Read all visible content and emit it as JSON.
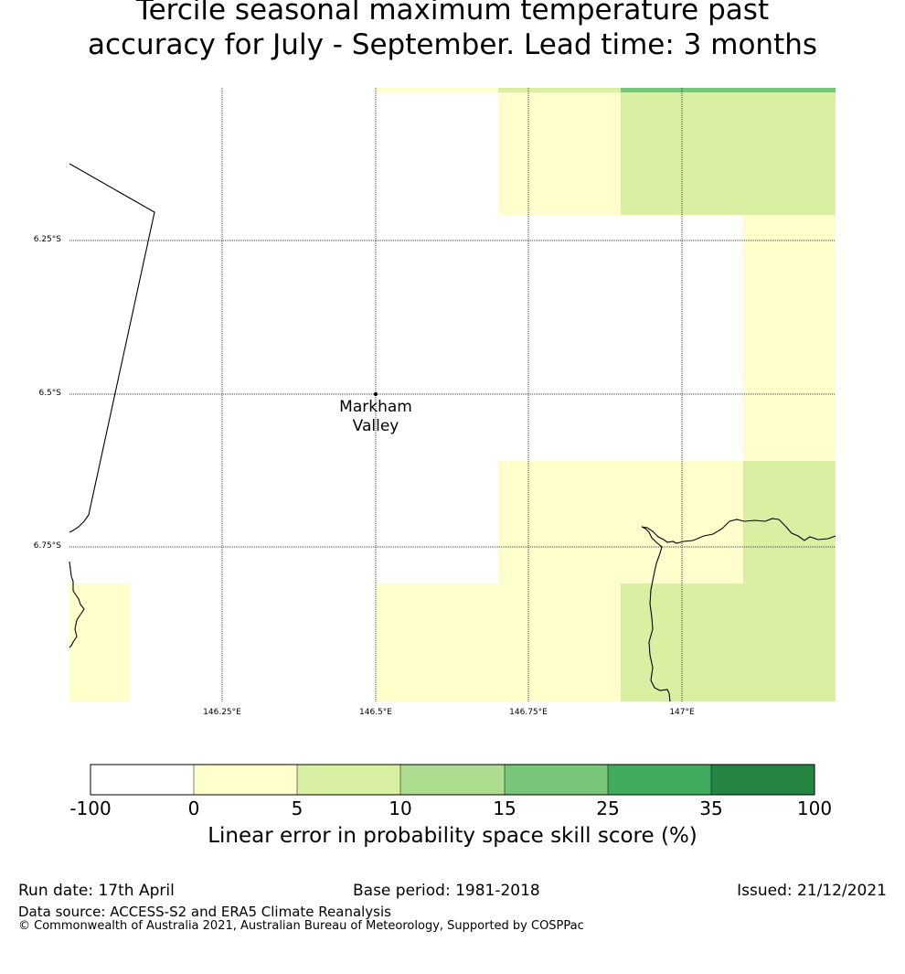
{
  "title": {
    "line1": "Tercile seasonal maximum temperature past",
    "line2": "accuracy for July - September. Lead time: 3 months"
  },
  "map": {
    "lat_labels": [
      "6.25°S",
      "6.5°S",
      "6.75°S"
    ],
    "lon_labels": [
      "146.25°E",
      "146.5°E",
      "146.75°E",
      "147°E"
    ],
    "place": {
      "name_line1": "Markham",
      "name_line2": "Valley"
    }
  },
  "colorbar": {
    "tick_labels": [
      "-100",
      "0",
      "5",
      "10",
      "15",
      "25",
      "35",
      "100"
    ],
    "colors": [
      "#ffffff",
      "#ffffcc",
      "#d9f0a3",
      "#addd8e",
      "#78c679",
      "#41ab5d",
      "#238443"
    ],
    "title": "Linear error in probability space skill score (%)"
  },
  "footer": {
    "run_date": "Run date: 17th April",
    "base_period": "Base period: 1981-2018",
    "issued": "Issued: 21/12/2021",
    "data_source": "Data source: ACCESS-S2 and ERA5 Climate Reanalysis",
    "copyright": "© Commonwealth of Australia 2021, Australian Bureau of Meteorology, Supported by COSPPac"
  }
}
